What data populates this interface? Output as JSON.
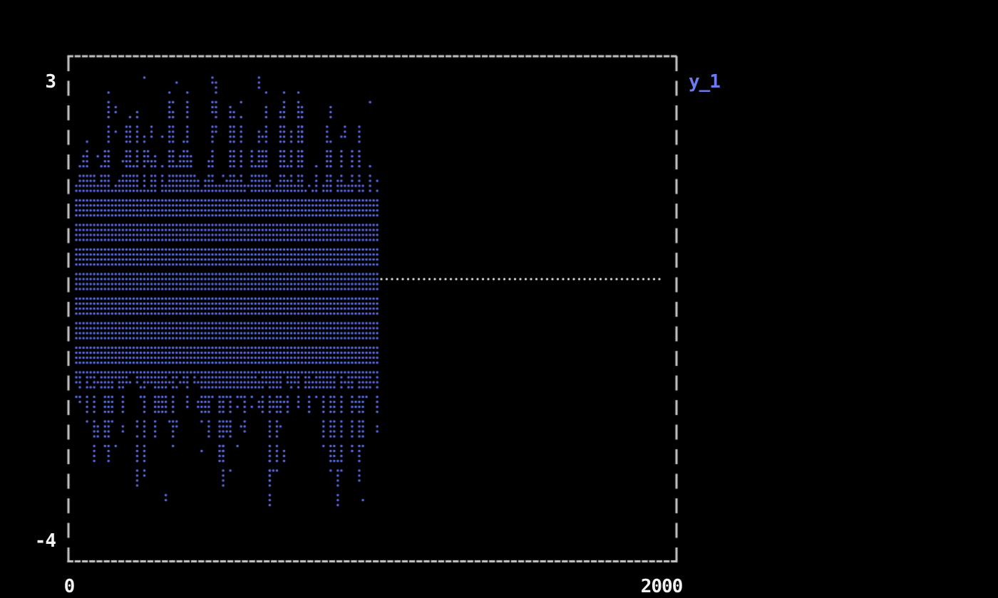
{
  "window": {
    "background": "#000000"
  },
  "axes": {
    "y_max_label": "3",
    "y_min_label": "-4",
    "x_min_label": "0",
    "x_max_label": "2000"
  },
  "legend": {
    "label": "y_1",
    "color": "#6d7bf2"
  },
  "chart_data": {
    "type": "scatter",
    "render_style": "terminal-braille-dots",
    "title": "",
    "xlabel": "",
    "ylabel": "",
    "xlim": [
      0,
      2000
    ],
    "ylim": [
      -4,
      3
    ],
    "x_ticks": [
      0,
      2000
    ],
    "y_ticks": [
      3,
      -4
    ],
    "grid": false,
    "legend_position": "outside-top-right",
    "background": "#000000",
    "frame_color": "#c9c9c9",
    "label_color": "#f2f2f2",
    "series": [
      {
        "name": "y_1",
        "color": "#5c6ce6",
        "marker": "braille",
        "segments": [
          {
            "x_range": [
              0,
              1000
            ],
            "type": "random-noise",
            "mean": 0,
            "core_band": [
              -1.5,
              1.35
            ],
            "typical_band": [
              -2.9,
              2.5
            ],
            "extent": [
              -3.55,
              3.05
            ],
            "noise_profile": {
              "top_base": 1.42,
              "top_spread": 1.6,
              "top_exp": 2.0,
              "bot_base": 1.6,
              "bot_spread": 1.55,
              "bot_exp": 2.2,
              "edge_skip_zone": 0.17,
              "edge_skip_prob": 0.45,
              "outlier_prob_above": 0.11,
              "outlier_prob_below": 0.13,
              "outlier_range_above": 1.3,
              "outlier_range_below": 1.4
            }
          },
          {
            "x_range": [
              1000,
              2000
            ],
            "type": "constant",
            "y": 0,
            "color": "#ffffff",
            "style": "dotted"
          }
        ],
        "extremes": [
          {
            "x": 495,
            "y": 3.05
          },
          {
            "x": 790,
            "y": 2.58
          },
          {
            "x": 226,
            "y": -3.2
          },
          {
            "x": 526,
            "y": -3.25
          },
          {
            "x": 676,
            "y": -3.52
          },
          {
            "x": 903,
            "y": -3.52
          }
        ]
      }
    ]
  }
}
